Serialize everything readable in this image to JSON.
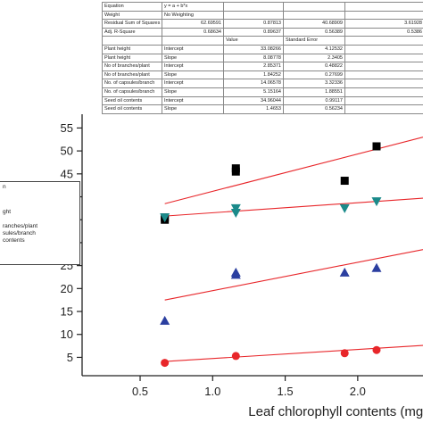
{
  "stats_table": {
    "header_rows": [
      {
        "label": "Equation",
        "value": "y = a + b*x"
      },
      {
        "label": "Weight",
        "value": "No Weighting"
      }
    ],
    "rss_row": {
      "label": "Residual Sum of Squares",
      "values": [
        "62.69591",
        "0.87813",
        "40.68909",
        "3.61928"
      ]
    },
    "adjr_row": {
      "label": "Adj. R-Square",
      "values": [
        "0.68634",
        "0.89637",
        "0.56389",
        "0.5386"
      ]
    },
    "col_header": {
      "value": "Value",
      "error": "Standard Error"
    },
    "rows": [
      {
        "series": "Plant height",
        "param": "Intercept",
        "value": "33.08266",
        "error": "4.12532"
      },
      {
        "series": "Plant height",
        "param": "Slope",
        "value": "8.08778",
        "error": "2.3405"
      },
      {
        "series": "No of branches/plant",
        "param": "Intercept",
        "value": "2.85371",
        "error": "0.48822"
      },
      {
        "series": "No of branches/plant",
        "param": "Slope",
        "value": "1.84252",
        "error": "0.27699"
      },
      {
        "series": "No. of capsules/branch",
        "param": "Intercept",
        "value": "14.06578",
        "error": "3.32336"
      },
      {
        "series": "No. of capsules/branch",
        "param": "Slope",
        "value": "5.15164",
        "error": "1.88551"
      },
      {
        "series": "Seed oil contents",
        "param": "Intercept",
        "value": "34.96044",
        "error": "0.99117"
      },
      {
        "series": "Seed oil contents",
        "param": "Slope",
        "value": "1.4653",
        "error": "0.56234"
      }
    ]
  },
  "legend": {
    "lines": [
      "n",
      "ght",
      "ranches/plant",
      "sules/branch",
      "contents"
    ]
  },
  "chart_data": {
    "type": "scatter",
    "title": "",
    "xlabel": "Leaf chlorophyll contents (mg/g)",
    "ylabel": "",
    "xlim": [
      0.1,
      2.45
    ],
    "ylim": [
      1,
      58
    ],
    "xticks": [
      0.5,
      1.0,
      1.5,
      2.0
    ],
    "xtick_labels": [
      "0.5",
      "1.0",
      "1.5",
      "2.0"
    ],
    "yticks": [
      5,
      10,
      15,
      20,
      25,
      30,
      35,
      40,
      45,
      50,
      55
    ],
    "ytick_labels": [
      "5",
      "10",
      "15",
      "20",
      "25",
      "30",
      "35",
      "40",
      "45",
      "50",
      "55"
    ],
    "series": [
      {
        "marker": "square",
        "color": "#000000",
        "points": [
          [
            0.67,
            35
          ],
          [
            0.67,
            35.5
          ],
          [
            1.16,
            45.5
          ],
          [
            1.16,
            46.2
          ],
          [
            1.91,
            43.5
          ],
          [
            2.13,
            51
          ]
        ],
        "fit": [
          [
            0.67,
            38.5
          ],
          [
            2.45,
            53
          ]
        ]
      },
      {
        "marker": "triangle-down",
        "color": "#1a8a8a",
        "points": [
          [
            0.67,
            35.5
          ],
          [
            1.16,
            36.5
          ],
          [
            1.16,
            37.5
          ],
          [
            1.91,
            37.5
          ],
          [
            2.13,
            39
          ]
        ],
        "fit": [
          [
            0.67,
            35.8
          ],
          [
            2.45,
            39.7
          ]
        ]
      },
      {
        "marker": "triangle-up",
        "color": "#2b3fa0",
        "points": [
          [
            0.67,
            13
          ],
          [
            1.16,
            23
          ],
          [
            1.16,
            23.5
          ],
          [
            1.91,
            23.5
          ],
          [
            2.13,
            24.5
          ]
        ],
        "fit": [
          [
            0.67,
            17.5
          ],
          [
            2.45,
            28.5
          ]
        ]
      },
      {
        "marker": "circle",
        "color": "#e8262a",
        "points": [
          [
            0.67,
            3.8
          ],
          [
            1.16,
            5.3
          ],
          [
            1.91,
            5.9
          ],
          [
            2.13,
            6.6
          ]
        ],
        "fit": [
          [
            0.67,
            4.1
          ],
          [
            2.45,
            7.6
          ]
        ]
      }
    ]
  }
}
